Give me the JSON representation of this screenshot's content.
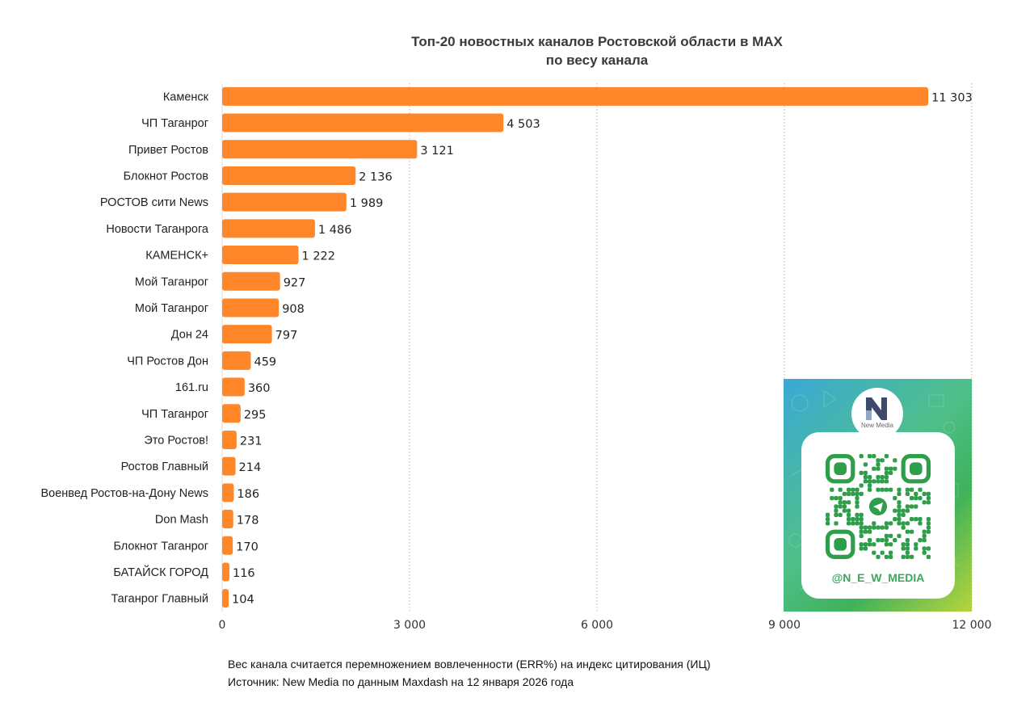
{
  "chart_data": {
    "type": "bar",
    "orientation": "horizontal",
    "title": [
      "Топ-20 новостных каналов Ростовской области в MAX",
      "по весу канала"
    ],
    "categories": [
      "Каменск",
      "ЧП Таганрог",
      "Привет Ростов",
      "Блокнот Ростов",
      "РОСТОВ сити News",
      "Новости Таганрога",
      "КАМЕНСК+",
      "Мой Таганрог",
      "Мой Таганрог",
      "Дон 24",
      "ЧП Ростов Дон",
      "161.ru",
      "ЧП Таганрог",
      "Это Ростов!",
      "Ростов Главный",
      "Военвед Ростов-на-Дону News",
      "Don Mash",
      "Блокнот Таганрог",
      "БАТАЙСК ГОРОД",
      "Таганрог Главный"
    ],
    "values": [
      11303,
      4503,
      3121,
      2136,
      1989,
      1486,
      1222,
      927,
      908,
      797,
      459,
      360,
      295,
      231,
      214,
      186,
      178,
      170,
      116,
      104
    ],
    "value_labels": [
      "11 303",
      "4 503",
      "3 121",
      "2 136",
      "1 989",
      "1 486",
      "1 222",
      "927",
      "908",
      "797",
      "459",
      "360",
      "295",
      "231",
      "214",
      "186",
      "178",
      "170",
      "116",
      "104"
    ],
    "xlim": [
      0,
      12000
    ],
    "xticks": [
      0,
      3000,
      6000,
      9000,
      12000
    ],
    "xtick_labels": [
      "0",
      "3 000",
      "6 000",
      "9 000",
      "12 000"
    ],
    "grid": "vertical dotted",
    "bar_color": "#FF8629",
    "grid_color": "#BBBBBB"
  },
  "footnote": {
    "line1": "Вес канала считается перемножением вовлеченности (ERR%) на индекс цитирования (ИЦ)",
    "line2": "Источник: New Media по данным Maxdash на 12 января 2026 года"
  },
  "promo": {
    "brand": "New Media",
    "handle": "@N_E_W_MEDIA",
    "qr_color": "#2E9E4A",
    "icons": [
      "new-media-logo-icon",
      "qr-code-icon",
      "telegram-icon"
    ]
  }
}
